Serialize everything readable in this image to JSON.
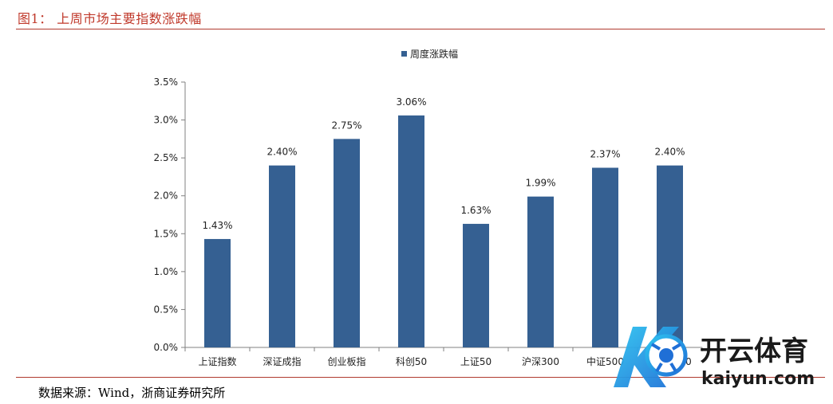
{
  "header": {
    "title": "图1：  上周市场主要指数涨跌幅"
  },
  "footer": {
    "source": "数据来源：Wind，浙商证券研究所"
  },
  "watermark": {
    "brand": "开云体育",
    "domain": "kaiyun.com"
  },
  "colors": {
    "bar": "#356092",
    "accent_red": "#c0392b",
    "axis": "#808080"
  },
  "chart_data": {
    "type": "bar",
    "categories": [
      "上证指数",
      "深证成指",
      "创业板指",
      "科创50",
      "上证50",
      "沪深300",
      "中证500",
      "中证1000"
    ],
    "series": [
      {
        "name": "周度涨跌幅",
        "values": [
          1.43,
          2.4,
          2.75,
          3.06,
          1.63,
          1.99,
          2.37,
          2.4
        ]
      }
    ],
    "data_labels": [
      "1.43%",
      "2.40%",
      "2.75%",
      "3.06%",
      "1.63%",
      "1.99%",
      "2.37%",
      "2.40%"
    ],
    "y_ticks": [
      "0.0%",
      "0.5%",
      "1.0%",
      "1.5%",
      "2.0%",
      "2.5%",
      "3.0%",
      "3.5%"
    ],
    "ylim": [
      0,
      3.5
    ],
    "legend": "top-center",
    "grid": false
  }
}
